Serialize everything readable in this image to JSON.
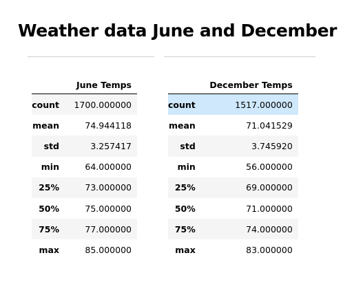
{
  "title": "Weather data June and December",
  "june_table": {
    "header": "June Temps",
    "rows": [
      {
        "label": "count",
        "value": "1700.000000"
      },
      {
        "label": "mean",
        "value": "74.944118"
      },
      {
        "label": "std",
        "value": "3.257417"
      },
      {
        "label": "min",
        "value": "64.000000"
      },
      {
        "label": "25%",
        "value": "73.000000"
      },
      {
        "label": "50%",
        "value": "75.000000"
      },
      {
        "label": "75%",
        "value": "77.000000"
      },
      {
        "label": "max",
        "value": "85.000000"
      }
    ]
  },
  "december_table": {
    "header": "December Temps",
    "rows": [
      {
        "label": "count",
        "value": "1517.000000"
      },
      {
        "label": "mean",
        "value": "71.041529"
      },
      {
        "label": "std",
        "value": "3.745920"
      },
      {
        "label": "min",
        "value": "56.000000"
      },
      {
        "label": "25%",
        "value": "69.000000"
      },
      {
        "label": "50%",
        "value": "71.000000"
      },
      {
        "label": "75%",
        "value": "74.000000"
      },
      {
        "label": "max",
        "value": "83.000000"
      }
    ]
  },
  "colors": {
    "row_stripe": "#f5f5f5",
    "row_highlight": "#cfe8fc",
    "divider": "#cfcfcf"
  }
}
